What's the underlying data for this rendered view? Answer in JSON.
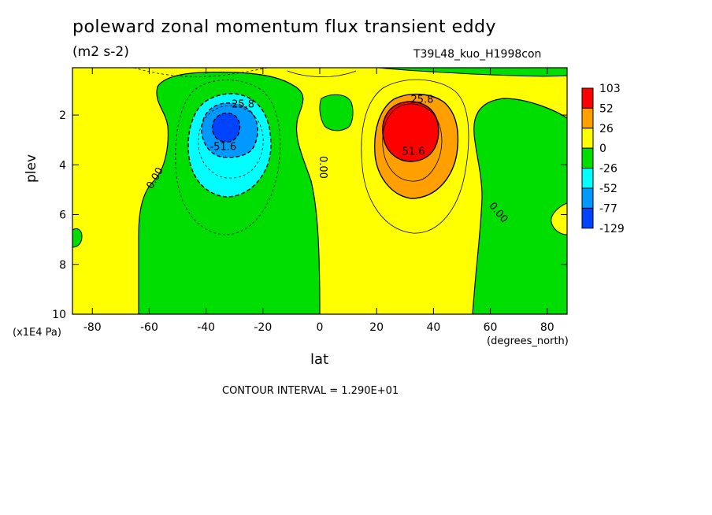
{
  "chart_data": {
    "type": "contour",
    "title": "poleward zonal momentum flux transient eddy",
    "units": "(m2 s-2)",
    "experiment": "T39L48_kuo_H1998con",
    "xlabel": "lat",
    "ylabel": "plev",
    "x_unit_label": "(degrees_north)",
    "y_unit_label": "(x1E4 Pa)",
    "xlim": [
      -87,
      87
    ],
    "ylim": [
      10,
      0.1
    ],
    "x_ticks": [
      -80,
      -60,
      -40,
      -20,
      0,
      20,
      40,
      60,
      80
    ],
    "y_ticks": [
      2,
      4,
      6,
      8,
      10
    ],
    "contour_interval_text": "CONTOUR INTERVAL = 1.290E+01",
    "contour_labels": [
      {
        "text": "25.8",
        "lat": -27,
        "plev": 1.7
      },
      {
        "text": "-51.6",
        "lat": -34,
        "plev": 3.4
      },
      {
        "text": "0.00",
        "lat": -57,
        "plev": 4.6
      },
      {
        "text": "0.00",
        "lat": 0,
        "plev": 4.1
      },
      {
        "text": "25.8",
        "lat": 36,
        "plev": 1.5
      },
      {
        "text": "51.6",
        "lat": 33,
        "plev": 3.6
      },
      {
        "text": "0.00",
        "lat": 62,
        "plev": 6.0
      }
    ],
    "legend": {
      "labels": [
        "103",
        "52",
        "26",
        "0",
        "-26",
        "-52",
        "-77",
        "-129"
      ],
      "colors": [
        "#ff0000",
        "#ff9f00",
        "#ffff00",
        "#00dd00",
        "#00ffff",
        "#0099ff",
        "#0044ff"
      ]
    },
    "extrema": [
      {
        "kind": "min",
        "lat": -33,
        "plev": 2.5
      },
      {
        "kind": "max",
        "lat": 32,
        "plev": 2.6
      }
    ]
  }
}
